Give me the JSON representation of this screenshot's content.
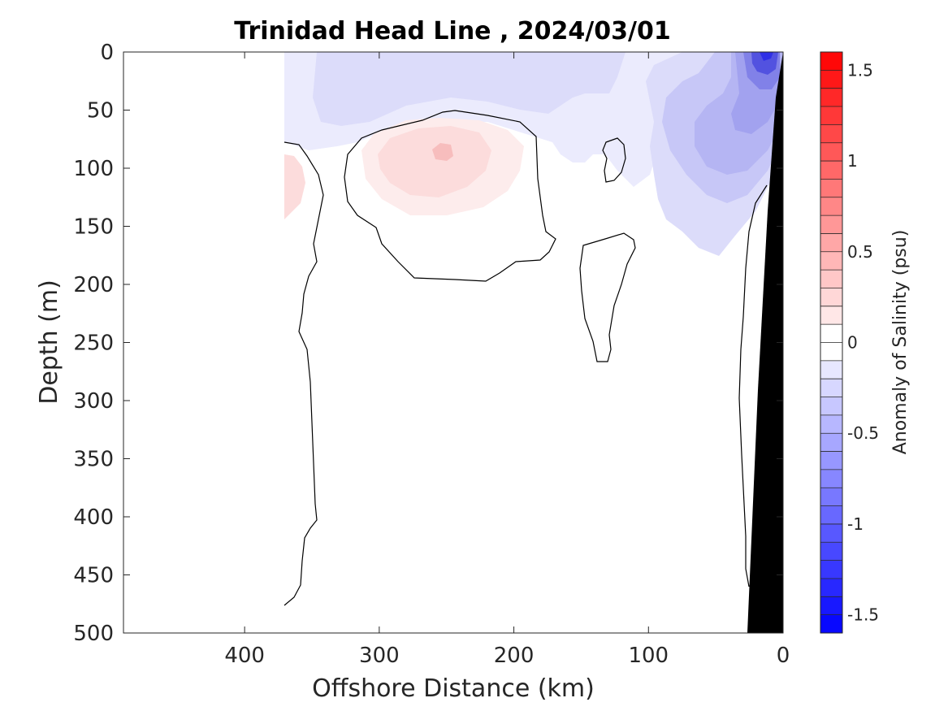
{
  "chart_data": {
    "type": "heatmap",
    "title": "Trinidad Head Line , 2024/03/01",
    "xlabel": "Offshore Distance (km)",
    "ylabel": "Depth (m)",
    "colorbar_label": "Anomaly of Salinity (psu)",
    "xlim": [
      490,
      0
    ],
    "ylim": [
      500,
      0
    ],
    "x_reversed": true,
    "y_reversed": true,
    "x_ticks": [
      "400",
      "300",
      "200",
      "100",
      "0"
    ],
    "x_tick_values": [
      400,
      300,
      200,
      100,
      0
    ],
    "y_ticks": [
      "0",
      "50",
      "100",
      "150",
      "200",
      "250",
      "300",
      "350",
      "400",
      "450",
      "500"
    ],
    "y_tick_values": [
      0,
      50,
      100,
      150,
      200,
      250,
      300,
      350,
      400,
      450,
      500
    ],
    "colorbar": {
      "range": [
        -1.6,
        1.6
      ],
      "step": 0.1,
      "ticks": [
        "-1.5",
        "-1",
        "-0.5",
        "0",
        "0.5",
        "1",
        "1.5"
      ],
      "tick_values": [
        -1.5,
        -1,
        -0.5,
        0,
        0.5,
        1,
        1.5
      ],
      "colormap": "blue-white-red",
      "low_color": "#0000ff",
      "high_color": "#ff0000"
    },
    "data_extent_km": [
      370,
      0
    ],
    "anomaly_regions": [
      {
        "name": "surface fresh layer",
        "dist_km": [
          370,
          0
        ],
        "depth_m": [
          0,
          80
        ],
        "min_value": -0.2,
        "sign": "negative"
      },
      {
        "name": "nearshore fresh core",
        "dist_km": [
          110,
          10
        ],
        "depth_m": [
          0,
          180
        ],
        "min_value": -0.5,
        "sign": "negative"
      },
      {
        "name": "coastal surface minimum",
        "dist_km": [
          25,
          10
        ],
        "depth_m": [
          0,
          10
        ],
        "min_value": -1.0,
        "sign": "negative"
      },
      {
        "name": "subsurface salty eddy",
        "dist_km": [
          300,
          200
        ],
        "depth_m": [
          60,
          140
        ],
        "max_value": 0.2,
        "sign": "positive"
      },
      {
        "name": "offshore salty patch",
        "dist_km": [
          370,
          355
        ],
        "depth_m": [
          85,
          145
        ],
        "max_value": 0.1,
        "sign": "positive"
      }
    ],
    "zero_contours": 5,
    "bathymetry_color": "#000000"
  }
}
